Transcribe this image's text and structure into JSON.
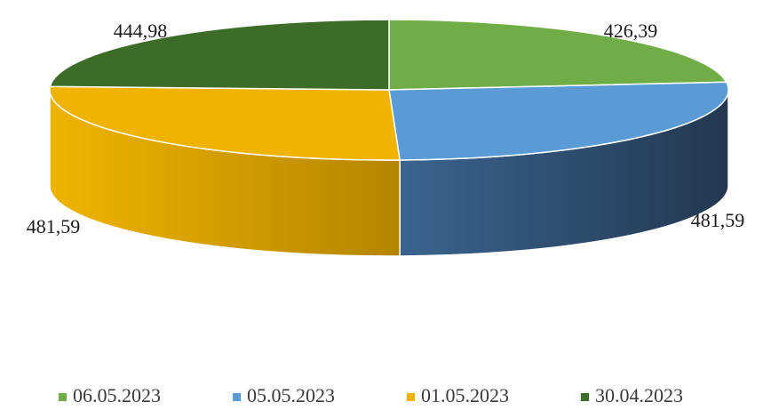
{
  "chart_data": {
    "type": "pie",
    "style": "3d",
    "categories": [
      "06.05.2023",
      "05.05.2023",
      "01.05.2023",
      "30.04.2023"
    ],
    "values": [
      426.39,
      481.59,
      481.59,
      444.98
    ],
    "labels": [
      "426,39",
      "481,59",
      "481,59",
      "444,98"
    ],
    "colors": [
      "#70ad47",
      "#5b9bd5",
      "#f0b400",
      "#3d6b28"
    ],
    "side_colors": [
      [
        "#3f5f26",
        "#4c7530"
      ],
      [
        "#3a6490",
        "#23384f"
      ],
      [
        "#f0b400",
        "#b48600"
      ],
      [
        "#2a4a1b",
        "#345a22"
      ]
    ],
    "legend_position": "bottom"
  }
}
